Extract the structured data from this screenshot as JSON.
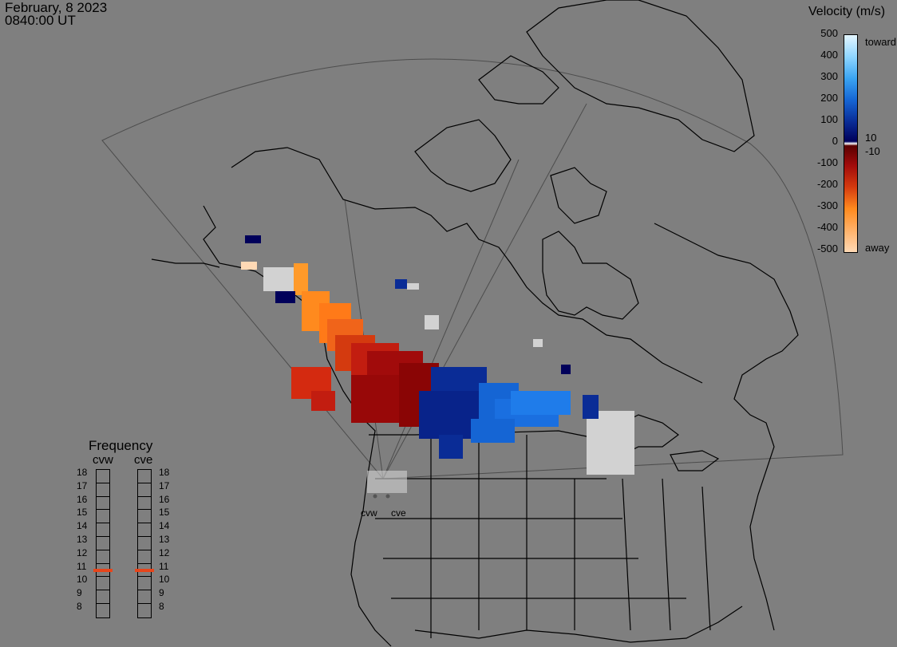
{
  "header": {
    "date": "February, 8 2023",
    "time": "0840:00 UT"
  },
  "velocity_legend": {
    "title": "Velocity (m/s)",
    "ticks_left": [
      "500",
      "400",
      "300",
      "200",
      "100",
      "0",
      "-100",
      "-200",
      "-300",
      "-400",
      "-500"
    ],
    "ticks_right": {
      "toward": "toward",
      "pos10": "10",
      "neg10": "-10",
      "away": "away"
    },
    "colors": [
      "#e4f6ff",
      "#8fd6ff",
      "#3aa4f2",
      "#1565d4",
      "#0a2c96",
      "#00005a",
      "#ffffff",
      "#5a0000",
      "#a10b0b",
      "#d43a0f",
      "#ff8a1e",
      "#ffd9b5"
    ]
  },
  "frequency_legend": {
    "title": "Frequency",
    "radars": [
      "cvw",
      "cve"
    ],
    "levels": [
      "18",
      "17",
      "16",
      "15",
      "14",
      "13",
      "12",
      "11",
      "10",
      "9",
      "8"
    ],
    "cvw_freq": 11,
    "cve_freq": 11,
    "marker_color": "#e8451a"
  },
  "sites": {
    "west": "cvw",
    "east": "cve"
  },
  "colors": {
    "background": "#7f7f7f",
    "land_line": "#000000",
    "fov_line": "#4a4a4a",
    "ground_scatter": "#d2d2d2"
  }
}
